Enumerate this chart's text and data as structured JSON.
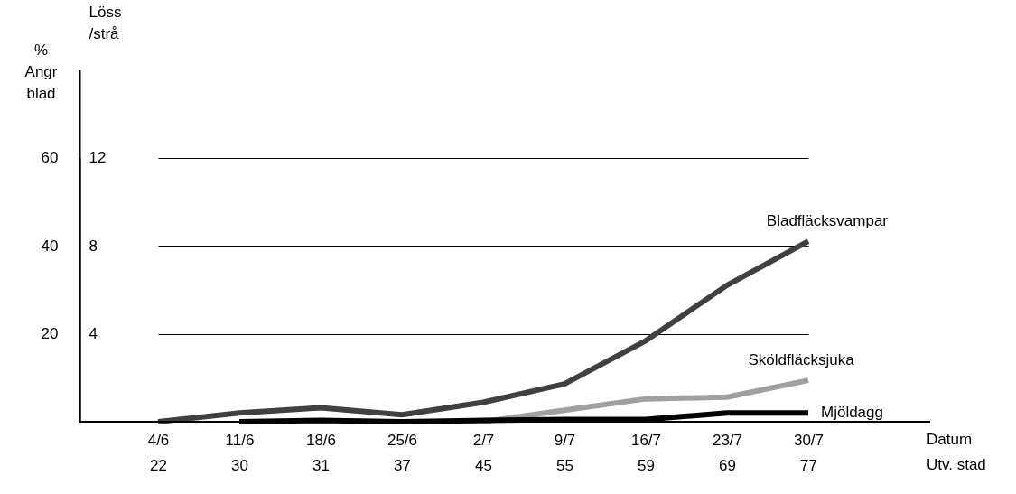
{
  "chart_data": {
    "type": "line",
    "ylabel": "%\nAngr\nblad",
    "y2label": "Löss\n/strå",
    "annotations": [
      "Datum\nUtv. stad"
    ],
    "categories": [
      "4/6\n22",
      "11/6\n30",
      "18/6\n31",
      "25/6\n37",
      "2/7\n45",
      "9/7\n55",
      "16/7\n59",
      "23/7\n69",
      "30/7\n77"
    ],
    "series": [
      {
        "name": "Bladfläcksvampar",
        "color": "#404040",
        "values": [
          0,
          2,
          3.2,
          1.6,
          4.4,
          8.6,
          18.4,
          31,
          41
        ]
      },
      {
        "name": "Sköldfläcksjuka",
        "color": "#a0a0a0",
        "values": [
          null,
          0,
          0,
          0,
          0,
          2.6,
          5.2,
          5.6,
          9.4
        ]
      },
      {
        "name": "Mjöldagg",
        "color": "#000000",
        "values": [
          null,
          0,
          0.3,
          0,
          0.3,
          0.5,
          0.5,
          2,
          2
        ]
      }
    ],
    "ylim": [
      0,
      80
    ],
    "yticks": [
      20,
      40,
      60
    ],
    "y2lim": [
      0,
      12
    ],
    "y2ticks": [
      4,
      8,
      12
    ],
    "grid": "y",
    "marker": "none",
    "line_style": "solid"
  }
}
